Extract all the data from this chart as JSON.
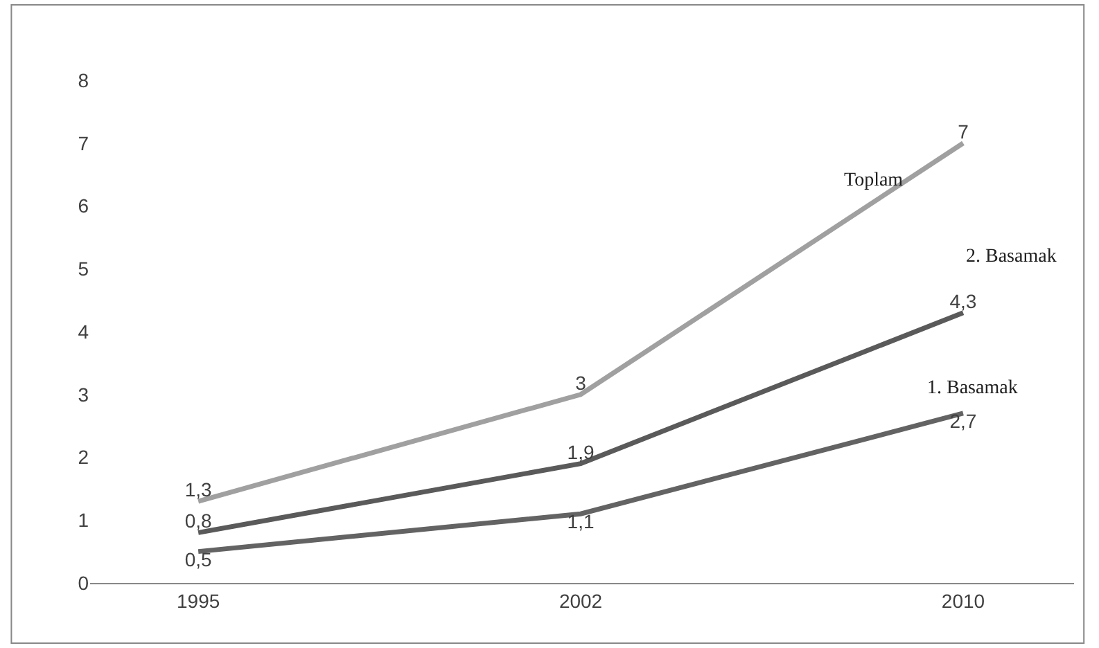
{
  "chart_data": {
    "type": "line",
    "categories": [
      "1995",
      "2002",
      "2010"
    ],
    "series": [
      {
        "name": "Toplam",
        "color": "#a0a0a0",
        "values": [
          1.3,
          3,
          7
        ],
        "value_labels": [
          "1,3",
          "3",
          "7"
        ]
      },
      {
        "name": "2. Basamak",
        "color": "#5a5a5a",
        "values": [
          0.8,
          1.9,
          4.3
        ],
        "value_labels": [
          "0,8",
          "1,9",
          "4,3"
        ]
      },
      {
        "name": "1. Basamak",
        "color": "#636363",
        "values": [
          0.5,
          1.1,
          2.7
        ],
        "value_labels": [
          "0,5",
          "1,1",
          "2,7"
        ]
      }
    ],
    "ylim": [
      0,
      8
    ],
    "yticks": [
      0,
      1,
      2,
      3,
      4,
      5,
      6,
      7,
      8
    ],
    "grid": false,
    "legend": false,
    "marker": "none",
    "line_style": "solid"
  }
}
